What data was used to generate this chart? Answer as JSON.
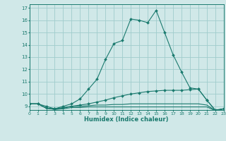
{
  "xlabel": "Humidex (Indice chaleur)",
  "xlim": [
    0,
    23
  ],
  "ylim": [
    8.7,
    17.3
  ],
  "yticks": [
    9,
    10,
    11,
    12,
    13,
    14,
    15,
    16,
    17
  ],
  "xticks": [
    0,
    1,
    2,
    3,
    4,
    5,
    6,
    7,
    8,
    9,
    10,
    11,
    12,
    13,
    14,
    15,
    16,
    17,
    18,
    19,
    20,
    21,
    22,
    23
  ],
  "background_color": "#d0e8e8",
  "grid_color": "#a0cccc",
  "line_color": "#1a7a6e",
  "lines": [
    {
      "x": [
        0,
        1,
        2,
        3,
        4,
        5,
        6,
        7,
        8,
        9,
        10,
        11,
        12,
        13,
        14,
        15,
        16,
        17,
        18,
        19,
        20,
        21,
        22,
        23
      ],
      "y": [
        9.2,
        9.2,
        9.0,
        8.8,
        9.0,
        9.2,
        9.6,
        10.4,
        11.2,
        12.8,
        14.1,
        14.35,
        16.1,
        16.0,
        15.8,
        16.8,
        15.0,
        13.2,
        11.8,
        10.5,
        10.4,
        9.5,
        8.7,
        8.8
      ],
      "marker": true
    },
    {
      "x": [
        0,
        1,
        2,
        3,
        4,
        5,
        6,
        7,
        8,
        9,
        10,
        11,
        12,
        13,
        14,
        15,
        16,
        17,
        18,
        19,
        20,
        21,
        22,
        23
      ],
      "y": [
        9.2,
        9.2,
        8.85,
        8.8,
        8.9,
        9.0,
        9.1,
        9.2,
        9.35,
        9.5,
        9.7,
        9.85,
        10.0,
        10.1,
        10.2,
        10.25,
        10.3,
        10.3,
        10.3,
        10.35,
        10.4,
        9.5,
        8.65,
        8.8
      ],
      "marker": true
    },
    {
      "x": [
        0,
        1,
        2,
        3,
        4,
        5,
        6,
        7,
        8,
        9,
        10,
        11,
        12,
        13,
        14,
        15,
        16,
        17,
        18,
        19,
        20,
        21,
        22,
        23
      ],
      "y": [
        9.2,
        9.2,
        8.85,
        8.75,
        8.85,
        9.0,
        9.0,
        9.05,
        9.1,
        9.1,
        9.15,
        9.15,
        9.2,
        9.2,
        9.2,
        9.2,
        9.2,
        9.2,
        9.2,
        9.2,
        9.2,
        9.1,
        8.65,
        8.8
      ],
      "marker": false
    },
    {
      "x": [
        0,
        1,
        2,
        3,
        4,
        5,
        6,
        7,
        8,
        9,
        10,
        11,
        12,
        13,
        14,
        15,
        16,
        17,
        18,
        19,
        20,
        21,
        22,
        23
      ],
      "y": [
        9.2,
        9.2,
        8.85,
        8.75,
        8.8,
        8.9,
        8.9,
        8.95,
        8.95,
        8.95,
        8.95,
        8.95,
        8.95,
        8.95,
        8.95,
        8.95,
        8.95,
        8.95,
        8.95,
        8.95,
        8.95,
        8.95,
        8.65,
        8.8
      ],
      "marker": false
    }
  ]
}
